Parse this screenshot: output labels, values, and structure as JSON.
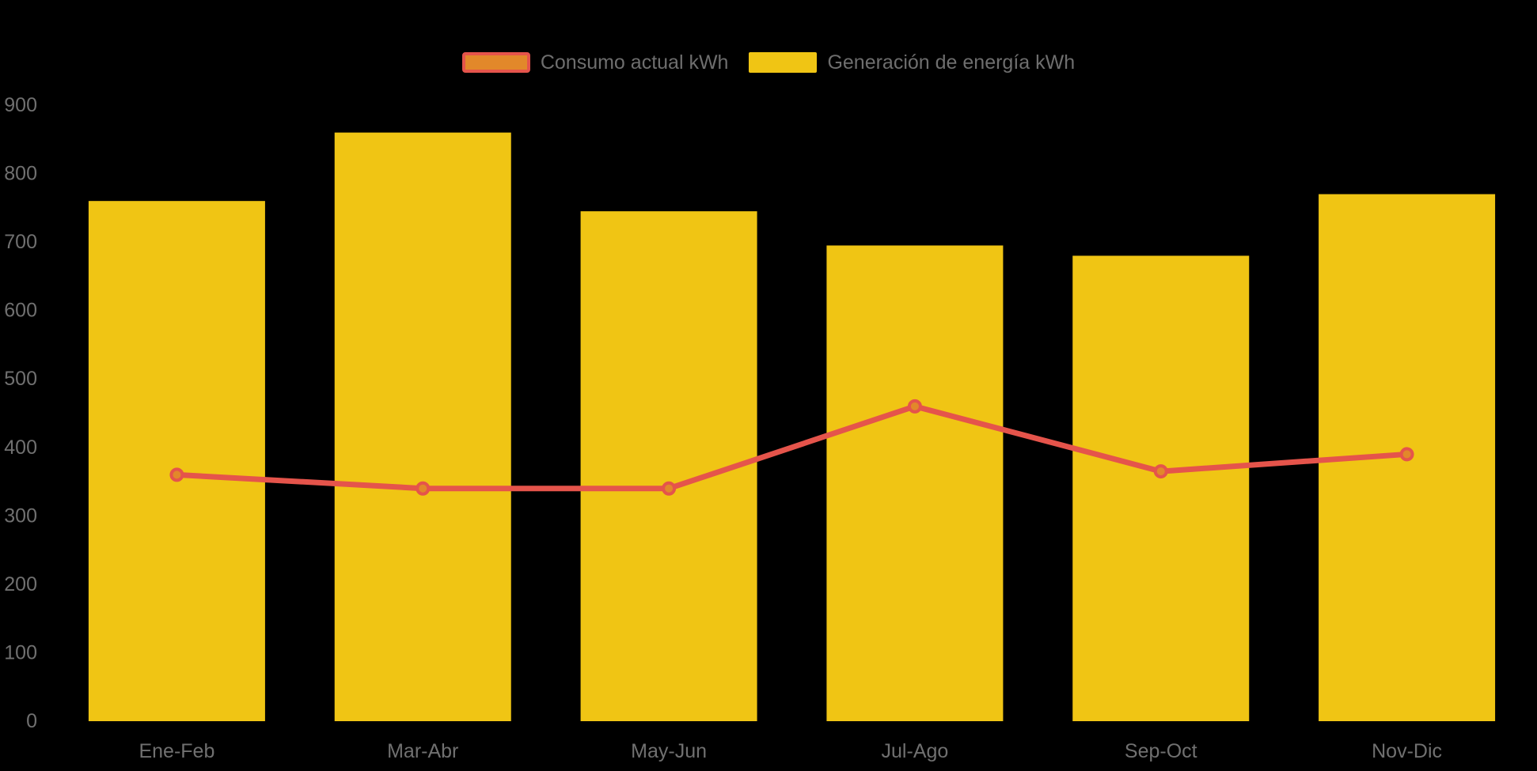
{
  "background_color": "#000000",
  "legend": {
    "items": [
      {
        "label": "Consumo actual kWh",
        "type": "line",
        "swatch_fill": "#E2882A",
        "swatch_border": "#E5544B"
      },
      {
        "label": "Generación de energía kWh",
        "type": "bar",
        "swatch_fill": "#F0C514",
        "swatch_border": "#F0C514"
      }
    ],
    "position": "top-center",
    "text_color": "#6E6E6E"
  },
  "chart_data": {
    "type": "bar",
    "subtype": "bar-line-combo",
    "title": "",
    "xlabel": "",
    "ylabel": "",
    "categories": [
      "Ene-Feb",
      "Mar-Abr",
      "May-Jun",
      "Jul-Ago",
      "Sep-Oct",
      "Nov-Dic"
    ],
    "series": [
      {
        "name": "Generación de energía kWh",
        "type": "bar",
        "color": "#F0C514",
        "values": [
          760,
          860,
          745,
          695,
          680,
          770
        ]
      },
      {
        "name": "Consumo actual kWh",
        "type": "line",
        "color": "#E5544B",
        "point_fill": "#E2882A",
        "values": [
          360,
          340,
          340,
          460,
          365,
          390
        ]
      }
    ],
    "ylim": [
      0,
      900
    ],
    "y_ticks": [
      0,
      100,
      200,
      300,
      400,
      500,
      600,
      700,
      800,
      900
    ],
    "grid": false,
    "axis_line": false,
    "legend_position": "top-center",
    "axis_label_color": "#707070"
  }
}
